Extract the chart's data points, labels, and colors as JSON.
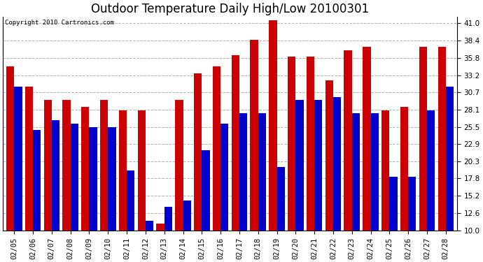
{
  "title": "Outdoor Temperature Daily High/Low 20100301",
  "copyright": "Copyright 2010 Cartronics.com",
  "dates": [
    "02/05",
    "02/06",
    "02/07",
    "02/08",
    "02/09",
    "02/10",
    "02/11",
    "02/12",
    "02/13",
    "02/14",
    "02/15",
    "02/16",
    "02/17",
    "02/18",
    "02/19",
    "02/20",
    "02/21",
    "02/22",
    "02/23",
    "02/24",
    "02/25",
    "02/26",
    "02/27",
    "02/28"
  ],
  "highs": [
    34.5,
    31.5,
    29.5,
    29.5,
    28.5,
    29.5,
    28.0,
    28.0,
    11.0,
    29.5,
    33.5,
    34.5,
    36.2,
    38.5,
    41.5,
    36.0,
    36.0,
    32.5,
    37.0,
    37.5,
    28.0,
    28.5,
    37.5,
    37.5
  ],
  "lows": [
    31.5,
    25.0,
    26.5,
    26.0,
    25.5,
    25.5,
    19.0,
    11.5,
    13.5,
    14.5,
    22.0,
    26.0,
    27.5,
    27.5,
    19.5,
    29.5,
    29.5,
    30.0,
    27.5,
    27.5,
    18.0,
    18.0,
    28.0,
    31.5
  ],
  "high_color": "#cc0000",
  "low_color": "#0000cc",
  "ylim": [
    10.0,
    42.0
  ],
  "yticks": [
    10.0,
    12.6,
    15.2,
    17.8,
    20.3,
    22.9,
    25.5,
    28.1,
    30.7,
    33.2,
    35.8,
    38.4,
    41.0
  ],
  "background_color": "#ffffff",
  "plot_bg_color": "#ffffff",
  "grid_color": "#b0b0b0",
  "title_fontsize": 12,
  "tick_fontsize": 7.5,
  "bar_width": 0.42
}
